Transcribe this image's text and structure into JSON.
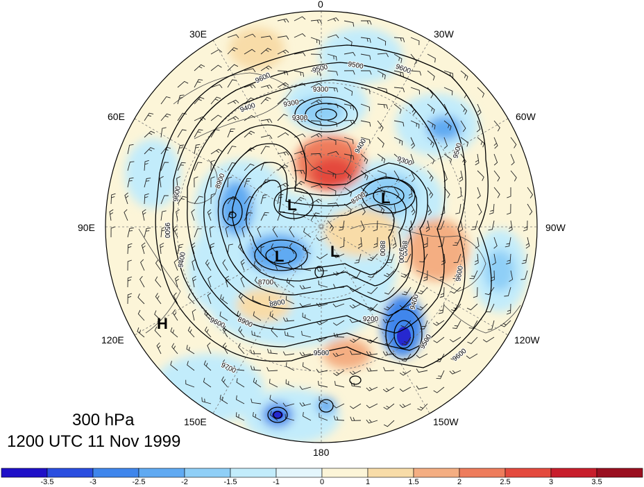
{
  "map": {
    "level": "300 hPa",
    "valid_time": "1200 UTC 11 Nov 1999",
    "center_symbols": [
      {
        "letter": "L"
      },
      {
        "letter": "L"
      },
      {
        "letter": "L"
      },
      {
        "letter": "L"
      },
      {
        "letter": "H"
      }
    ],
    "longitude_labels": [
      "0",
      "30W",
      "60W",
      "90W",
      "120W",
      "150W",
      "180",
      "150E",
      "120E",
      "90E",
      "60E",
      "30E"
    ],
    "contour_labels": [
      "9600",
      "9500",
      "9500",
      "9600",
      "9300",
      "9400",
      "9300",
      "9400",
      "9500",
      "8700",
      "8800",
      "8900",
      "9700",
      "9600",
      "9600",
      "9500",
      "9200",
      "8700",
      "8800",
      "8900",
      "9400",
      "9600",
      "9700",
      "9500",
      "9300",
      "9400",
      "8900",
      "9500",
      "9600",
      "9300"
    ]
  },
  "colorbar": {
    "tick_labels": [
      "-3.5",
      "-3",
      "-2.5",
      "-2",
      "-1.5",
      "-1",
      "0",
      "1",
      "1.5",
      "2",
      "2.5",
      "3",
      "3.5"
    ],
    "colors": [
      "#1f10c8",
      "#2a4ee0",
      "#3f86ec",
      "#60aaf2",
      "#8fcff7",
      "#c2ecfb",
      "#e4f6fc",
      "#fcf5d8",
      "#f8dca8",
      "#f4ae82",
      "#ee7c5c",
      "#e44a3e",
      "#c81e2c",
      "#9a0f20"
    ]
  }
}
